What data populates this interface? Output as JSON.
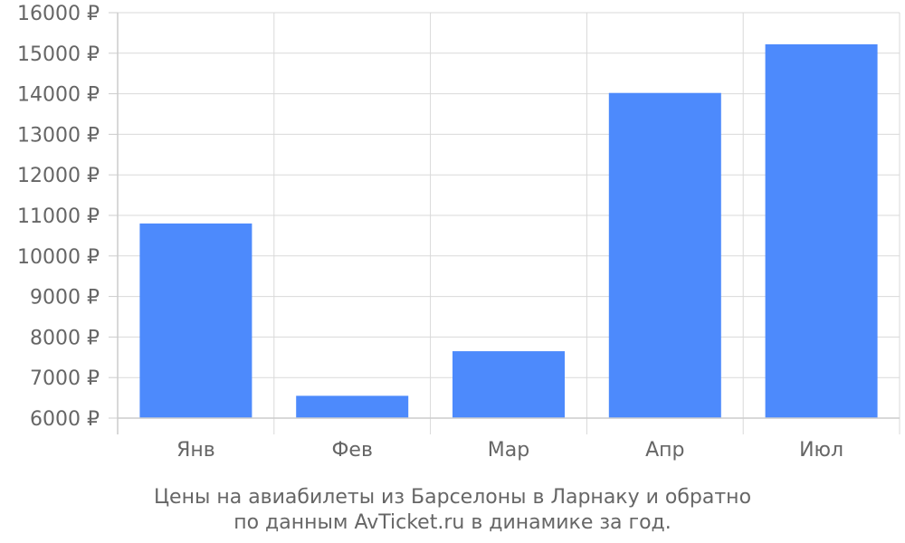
{
  "chart_data": {
    "type": "bar",
    "categories": [
      "Янв",
      "Фев",
      "Мар",
      "Апр",
      "Июл"
    ],
    "values": [
      10800,
      6550,
      7650,
      14020,
      15220
    ],
    "ylim": [
      6000,
      16000
    ],
    "ytick_step": 1000,
    "y_unit_suffix": " ₽",
    "grid": true,
    "bar_color": "#4d8afc",
    "grid_color": "#d9d9d9",
    "axis_color": "#cccccc",
    "text_color": "#666666",
    "caption_lines": [
      "Цены на авиабилеты из Барселоны в Ларнаку и обратно",
      "по данным AvTicket.ru в динамике за год."
    ]
  }
}
